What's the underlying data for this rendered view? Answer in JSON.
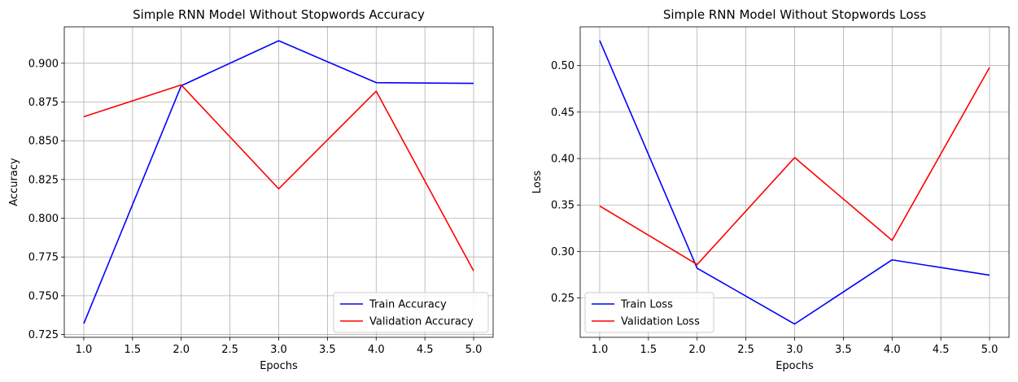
{
  "chart_data": [
    {
      "type": "line",
      "title": "Simple RNN Model Without Stopwords Accuracy",
      "xlabel": "Epochs",
      "ylabel": "Accuracy",
      "x": [
        1,
        2,
        3,
        4,
        5
      ],
      "xlim": [
        0.8,
        5.2
      ],
      "ylim": [
        0.7232,
        0.9235
      ],
      "xticks": [
        1.0,
        1.5,
        2.0,
        2.5,
        3.0,
        3.5,
        4.0,
        4.5,
        5.0
      ],
      "xtick_labels": [
        "1.0",
        "1.5",
        "2.0",
        "2.5",
        "3.0",
        "3.5",
        "4.0",
        "4.5",
        "5.0"
      ],
      "yticks": [
        0.725,
        0.75,
        0.775,
        0.8,
        0.825,
        0.85,
        0.875,
        0.9
      ],
      "ytick_labels": [
        "0.725",
        "0.750",
        "0.775",
        "0.800",
        "0.825",
        "0.850",
        "0.875",
        "0.900"
      ],
      "grid": true,
      "legend_position": "lower-right",
      "series": [
        {
          "name": "Train Accuracy",
          "color": "#0000ff",
          "values": [
            0.732,
            0.8855,
            0.9145,
            0.8875,
            0.887
          ]
        },
        {
          "name": "Validation Accuracy",
          "color": "#ff0000",
          "values": [
            0.8655,
            0.886,
            0.819,
            0.882,
            0.766
          ]
        }
      ]
    },
    {
      "type": "line",
      "title": "Simple RNN Model Without Stopwords Loss",
      "xlabel": "Epochs",
      "ylabel": "Loss",
      "x": [
        1,
        2,
        3,
        4,
        5
      ],
      "xlim": [
        0.8,
        5.2
      ],
      "ylim": [
        0.2077,
        0.5417
      ],
      "xticks": [
        1.0,
        1.5,
        2.0,
        2.5,
        3.0,
        3.5,
        4.0,
        4.5,
        5.0
      ],
      "xtick_labels": [
        "1.0",
        "1.5",
        "2.0",
        "2.5",
        "3.0",
        "3.5",
        "4.0",
        "4.5",
        "5.0"
      ],
      "yticks": [
        0.25,
        0.3,
        0.35,
        0.4,
        0.45,
        0.5
      ],
      "ytick_labels": [
        "0.25",
        "0.30",
        "0.35",
        "0.40",
        "0.45",
        "0.50"
      ],
      "grid": true,
      "legend_position": "lower-left",
      "series": [
        {
          "name": "Train Loss",
          "color": "#0000ff",
          "values": [
            0.527,
            0.282,
            0.222,
            0.291,
            0.2745
          ]
        },
        {
          "name": "Validation Loss",
          "color": "#ff0000",
          "values": [
            0.349,
            0.286,
            0.401,
            0.312,
            0.498
          ]
        }
      ]
    }
  ]
}
